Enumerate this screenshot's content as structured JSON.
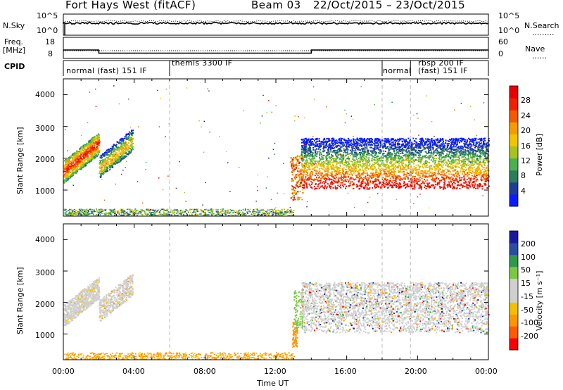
{
  "header": {
    "title": "Fort Hays West (fitACF)",
    "beam": "Beam 03",
    "date_range": "22/Oct/2015 – 23/Oct/2015"
  },
  "noise_panel": {
    "left_label": "N.Sky",
    "right_label": "N.Search",
    "right_legend": ".........",
    "left_ticks": [
      "10^5",
      "10^0"
    ],
    "right_ticks": [
      "10^5",
      "10^0"
    ]
  },
  "freq_panel": {
    "left_label_1": "Freq.",
    "left_label_2": "[MHz]",
    "left_ticks": [
      "18",
      "8"
    ],
    "right_label": "Nave",
    "right_legend": "......",
    "right_ticks": [
      "60",
      "0"
    ]
  },
  "cpid": {
    "label": "CPID",
    "modes": [
      {
        "text": "normal (fast) 151 IF",
        "start_hour": 0.0
      },
      {
        "text": "themis 3300 IF",
        "start_hour": 6.0
      },
      {
        "text": "normal",
        "start_hour": 18.0
      },
      {
        "text": "rbsp 200 IF",
        "start_hour": 19.6
      },
      {
        "text": "(fast) 151 IF",
        "start_hour": 19.6
      }
    ]
  },
  "power_panel": {
    "ylabel": "Slant Range [km]",
    "yticks": [
      "1000",
      "2000",
      "3000",
      "4000"
    ],
    "colorbar_label": "Power [dB]",
    "colorbar_ticks": [
      "4",
      "8",
      "12",
      "16",
      "20",
      "24",
      "28"
    ],
    "colorbar_colors": [
      "#0a1cff",
      "#1e3c96",
      "#2a7c5a",
      "#4caf50",
      "#a8c21e",
      "#f2c400",
      "#f59a00",
      "#f25a00",
      "#f02000",
      "#e80000"
    ]
  },
  "velocity_panel": {
    "ylabel": "Slant Range [km]",
    "yticks": [
      "1000",
      "2000",
      "3000",
      "4000"
    ],
    "colorbar_label": "Velocity [m s⁻¹]",
    "colorbar_ticks": [
      "-200",
      "-100",
      "-50",
      "-15",
      "15",
      "50",
      "100",
      "200"
    ],
    "colorbar_colors": [
      "#ff0000",
      "#ff5a00",
      "#ff9600",
      "#f2c000",
      "#cfcfcf",
      "#cfcfcf",
      "#7ac943",
      "#2e9a4a",
      "#2a4da0",
      "#1a1aa0"
    ]
  },
  "xaxis": {
    "label": "Time UT",
    "ticks": [
      "00:00",
      "04:00",
      "08:00",
      "12:00",
      "16:00",
      "20:00",
      "00:00"
    ]
  },
  "chart_data": {
    "type": "heatmap",
    "title": "Fort Hays West (fitACF)",
    "x_range_hours": [
      0,
      24
    ],
    "y_range_km": [
      180,
      4500
    ],
    "mode_boundaries_hours": [
      6.0,
      18.0,
      19.6
    ],
    "frequency_steps": [
      {
        "from_hour": 0.0,
        "to_hour": 2.0,
        "freq_mhz": 12.0
      },
      {
        "from_hour": 2.0,
        "to_hour": 14.0,
        "freq_mhz": 10.5
      },
      {
        "from_hour": 14.0,
        "to_hour": 24.0,
        "freq_mhz": 12.0
      }
    ],
    "power_echo_regions": [
      {
        "from_hour": 0.0,
        "to_hour": 2.0,
        "range_km": [
          1300,
          2600
        ],
        "peak_db": 28
      },
      {
        "from_hour": 2.0,
        "to_hour": 4.0,
        "range_km": [
          1400,
          2800
        ],
        "peak_db": 20
      },
      {
        "from_hour": 13.0,
        "to_hour": 24.0,
        "range_km": [
          1000,
          2600
        ],
        "peak_db": 28
      },
      {
        "from_hour": 0.0,
        "to_hour": 13.0,
        "range_km": [
          200,
          400
        ],
        "peak_db": 8
      }
    ],
    "velocity_echo_regions": [
      {
        "from_hour": 0.0,
        "to_hour": 4.0,
        "range_km": [
          1300,
          2800
        ],
        "velocity_ms": 0
      },
      {
        "from_hour": 12.8,
        "to_hour": 13.2,
        "range_km": [
          600,
          1400
        ],
        "velocity_ms": -60
      },
      {
        "from_hour": 13.0,
        "to_hour": 13.5,
        "range_km": [
          1200,
          2400
        ],
        "velocity_ms": 40
      },
      {
        "from_hour": 13.5,
        "to_hour": 24.0,
        "range_km": [
          1000,
          2600
        ],
        "velocity_ms": 0
      }
    ]
  }
}
